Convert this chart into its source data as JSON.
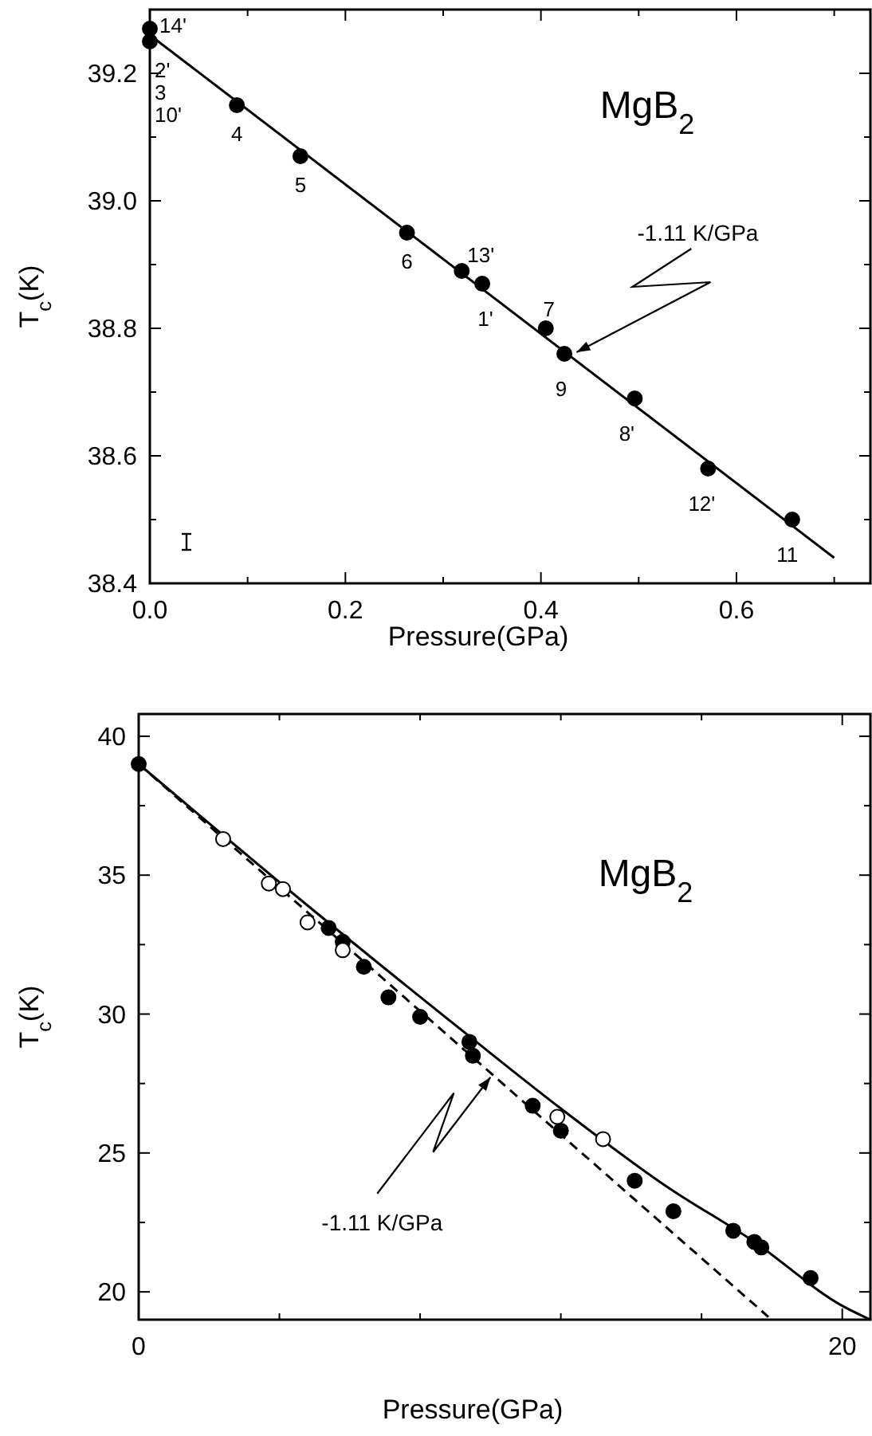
{
  "chart_data": [
    {
      "type": "scatter",
      "xlabel": "Pressure(GPa)",
      "ylabel": "T$_{c}$(K)",
      "xlim": [
        0,
        0.737
      ],
      "ylim": [
        38.4,
        39.3
      ],
      "xticks": [
        {
          "value": 0,
          "label": "0.0"
        },
        {
          "value": 0.1,
          "label": null
        },
        {
          "value": 0.2,
          "label": "0.2"
        },
        {
          "value": 0.3,
          "label": null
        },
        {
          "value": 0.4,
          "label": "0.4"
        },
        {
          "value": 0.5,
          "label": null
        },
        {
          "value": 0.6,
          "label": "0.6"
        },
        {
          "value": 0.7,
          "label": null
        }
      ],
      "yticks": [
        {
          "value": 38.4,
          "label": "38.4"
        },
        {
          "value": 38.5,
          "label": null
        },
        {
          "value": 38.6,
          "label": "38.6"
        },
        {
          "value": 38.7,
          "label": null
        },
        {
          "value": 38.8,
          "label": "38.8"
        },
        {
          "value": 38.9,
          "label": null
        },
        {
          "value": 39,
          "label": "39.0"
        },
        {
          "value": 39.1,
          "label": null
        },
        {
          "value": 39.2,
          "label": "39.2"
        }
      ],
      "grid": false,
      "series": [
        {
          "marker": "circle",
          "color": "#000000",
          "x": [
            0,
            0,
            0.089,
            0.154,
            0.263,
            0.319,
            0.34,
            0.405,
            0.424,
            0.496,
            0.571,
            0.657
          ],
          "values": [
            39.27,
            39.25,
            39.15,
            39.07,
            38.95,
            38.89,
            38.87,
            38.8,
            38.76,
            38.69,
            38.58,
            38.5
          ]
        },
        {
          "type": "line",
          "line_style": "solid",
          "color": "#000000",
          "x": [
            0,
            0.7
          ],
          "values": [
            39.26,
            38.44
          ]
        }
      ],
      "annotations": [
        {
          "text": "14'",
          "x": 0,
          "y": 39.27
        },
        {
          "text": "2'",
          "x": 0,
          "y": 39.25
        },
        {
          "text": "3",
          "x": 0,
          "y": 39.25
        },
        {
          "text": "10'",
          "x": 0,
          "y": 39.25
        },
        {
          "text": "4",
          "x": 0.089,
          "y": 39.15
        },
        {
          "text": "5",
          "x": 0.154,
          "y": 39.07
        },
        {
          "text": "6",
          "x": 0.263,
          "y": 38.95
        },
        {
          "text": "13'",
          "x": 0.319,
          "y": 38.89
        },
        {
          "text": "1'",
          "x": 0.34,
          "y": 38.87
        },
        {
          "text": "7",
          "x": 0.405,
          "y": 38.8
        },
        {
          "text": "9",
          "x": 0.424,
          "y": 38.76
        },
        {
          "text": "8'",
          "x": 0.496,
          "y": 38.69
        },
        {
          "text": "12'",
          "x": 0.571,
          "y": 38.58
        },
        {
          "text": "11",
          "x": 0.657,
          "y": 38.5
        },
        {
          "text": "-1.11 K/GPa",
          "x": 0.43,
          "y": 38.76
        },
        "MgB$_{2}$"
      ]
    },
    {
      "type": "scatter",
      "xlabel": "Pressure(GPa)",
      "ylabel": "T$_{c}$(K)",
      "xlim": [
        0,
        20.8
      ],
      "ylim": [
        19,
        40.8
      ],
      "xticks": [
        0,
        {
          "value": 4,
          "label": null
        },
        {
          "value": 8,
          "label": null
        },
        {
          "value": 12,
          "label": null
        },
        {
          "value": 16,
          "label": null
        },
        20
      ],
      "yticks": [
        20,
        {
          "value": 22.5,
          "label": null
        },
        25,
        {
          "value": 27.5,
          "label": null
        },
        30,
        {
          "value": 32.5,
          "label": null
        },
        35,
        {
          "value": 37.5,
          "label": null
        },
        40
      ],
      "grid": false,
      "series": [
        {
          "marker": "circle",
          "color": "#000000",
          "x": [
            0,
            5.4,
            5.8,
            6.4,
            7.1,
            8.0,
            9.4,
            9.5,
            11.2,
            12.0,
            14.1,
            15.2,
            16.9,
            17.5,
            17.7,
            19.1
          ],
          "values": [
            39.0,
            33.1,
            32.6,
            31.7,
            30.6,
            29.9,
            29.0,
            28.5,
            26.7,
            25.8,
            24.0,
            22.9,
            22.2,
            21.8,
            21.6,
            20.5
          ]
        },
        {
          "marker": "circle",
          "color": "#ffffff",
          "x": [
            2.4,
            3.7,
            4.1,
            4.8,
            5.8,
            11.9,
            13.2
          ],
          "values": [
            36.3,
            34.7,
            34.5,
            33.3,
            32.3,
            26.3,
            25.5
          ]
        },
        {
          "type": "line",
          "line_style": "solid",
          "color": "#000000",
          "x": [
            0,
            5,
            9.4,
            12,
            15,
            17.5,
            20,
            20.8
          ],
          "values": [
            39.0,
            33.7,
            29.2,
            26.6,
            23.8,
            21.8,
            19.5,
            19.0
          ]
        },
        {
          "type": "line",
          "line_style": "dashed",
          "color": "#000000",
          "x": [
            0,
            17.9
          ],
          "values": [
            39.0,
            19.1
          ]
        }
      ],
      "annotations": [
        {
          "text": "-1.11 K/GPa",
          "x": 10,
          "y": 27.9
        },
        "MgB$_{2}$"
      ]
    }
  ]
}
